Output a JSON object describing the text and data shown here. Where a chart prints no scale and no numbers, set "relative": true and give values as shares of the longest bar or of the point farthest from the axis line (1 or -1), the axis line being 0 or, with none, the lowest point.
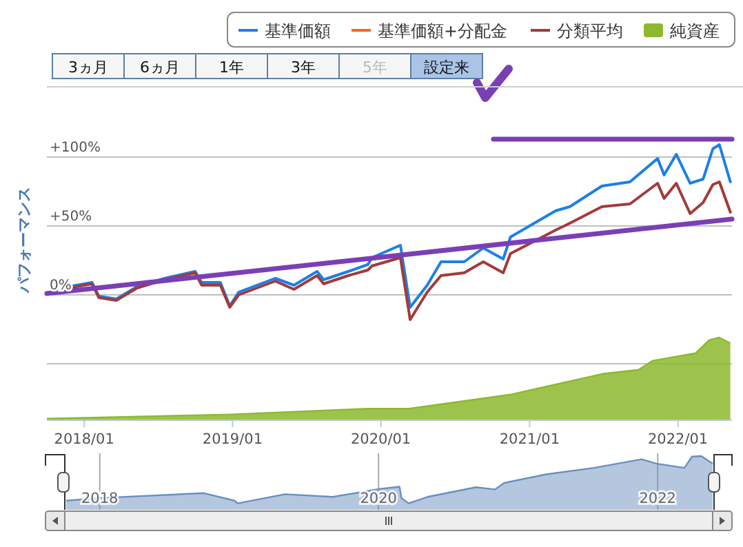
{
  "chart_data": [
    {
      "type": "line",
      "ylabel": "パフォーマンス",
      "xlim": [
        "2017-10-01",
        "2022-05-14"
      ],
      "ylim": [
        -91,
        151
      ],
      "xticks": [
        {
          "value": "2018-01-01",
          "label": "2018/01"
        },
        {
          "value": "2019-01-01",
          "label": "2019/01"
        },
        {
          "value": "2020-01-01",
          "label": "2020/01"
        },
        {
          "value": "2021-01-01",
          "label": "2021/01"
        },
        {
          "value": "2022-01-01",
          "label": "2022/01"
        }
      ],
      "yticks": [
        {
          "value": -50,
          "label": null
        },
        {
          "value": 0,
          "label": "0%"
        },
        {
          "value": 50,
          "label": "+50%"
        },
        {
          "value": 100,
          "label": "+100%"
        }
      ],
      "grid": "y",
      "legend": "top right",
      "marker": "none",
      "annotations": [
        "3ヵ月",
        "6ヵ月",
        "1年",
        "3年",
        "5年",
        "設定来"
      ],
      "x": [
        "2017-11-24",
        "2018-01-20",
        "2018-02-06",
        "2018-03-21",
        "2018-05-11",
        "2018-07-18",
        "2018-10-01",
        "2018-10-17",
        "2018-12-02",
        "2018-12-25",
        "2019-01-16",
        "2019-04-16",
        "2019-06-01",
        "2019-07-28",
        "2019-08-13",
        "2019-10-13",
        "2019-11-30",
        "2019-12-10",
        "2020-02-18",
        "2020-03-13",
        "2020-04-24",
        "2020-05-28",
        "2020-07-24",
        "2020-09-09",
        "2020-10-28",
        "2020-11-15",
        "2021-03-06",
        "2021-04-10",
        "2021-06-28",
        "2021-09-05",
        "2021-11-12",
        "2021-11-28",
        "2021-12-28",
        "2022-01-31",
        "2022-03-04",
        "2022-03-28",
        "2022-04-13",
        "2022-05-10"
      ],
      "series": [
        {
          "name": "基準価額",
          "color": "#1e7fe6",
          "values": [
            6,
            9,
            -1,
            -3,
            6,
            12,
            17,
            9,
            9,
            -8,
            2,
            12,
            7,
            17,
            11,
            17,
            22,
            27,
            36,
            -9,
            7,
            24,
            24,
            34,
            26,
            42,
            61,
            64,
            79,
            82,
            99,
            87,
            102,
            81,
            84,
            106,
            109,
            82
          ]
        },
        {
          "name": "基準価額+分配金",
          "color": "#f26b1d",
          "values": [
            null,
            null,
            null,
            null,
            null,
            null,
            null,
            null,
            null,
            null,
            null,
            null,
            null,
            null,
            null,
            null,
            null,
            null,
            null,
            null,
            null,
            null,
            null,
            null,
            null,
            null,
            null,
            null,
            null,
            null,
            null,
            null,
            null,
            null,
            null,
            null,
            null,
            null
          ]
        },
        {
          "name": "分類平均",
          "color": "#a33a3a",
          "values": [
            5,
            8,
            -2,
            -4,
            5,
            11,
            16,
            7,
            7,
            -9,
            0,
            10,
            4,
            14,
            8,
            14,
            18,
            21,
            27,
            -18,
            2,
            14,
            16,
            24,
            16,
            30,
            47,
            52,
            64,
            66,
            81,
            70,
            81,
            59,
            67,
            80,
            82,
            60
          ]
        },
        {
          "type": "line",
          "color": "#7b3fb5",
          "x": [
            "2017-10-01",
            "2022-05-14"
          ],
          "values": [
            1,
            55
          ]
        },
        {
          "type": "line",
          "color": "#7b3fb5",
          "x": [
            "2020-10-04",
            "2022-05-14"
          ],
          "values": [
            113,
            113
          ]
        }
      ]
    },
    {
      "type": "area",
      "relative": true,
      "tick_labels": false,
      "legend": "top right",
      "xlim": [
        "2017-10-01",
        "2022-05-14"
      ],
      "x": [
        "2017-10-01",
        "2018-12-25",
        "2019-11-30",
        "2020-03-10",
        "2020-11-15",
        "2021-06-28",
        "2021-09-26",
        "2021-10-31",
        "2022-02-13",
        "2022-03-19",
        "2022-04-13",
        "2022-05-10"
      ],
      "series": [
        {
          "name": "純資産",
          "color": "#8db92e",
          "values": [
            0.02,
            0.07,
            0.14,
            0.14,
            0.31,
            0.56,
            0.61,
            0.72,
            0.81,
            0.97,
            1,
            0.93
          ]
        }
      ]
    },
    {
      "type": "area",
      "relative": true,
      "grid": "x",
      "color": "#6a8fbf",
      "xlim": [
        "2017-10-05",
        "2022-05-25"
      ],
      "xticks": [
        {
          "value": "2018-01-01",
          "label": "2018"
        },
        {
          "value": "2020-01-01",
          "label": "2020"
        },
        {
          "value": "2022-01-01",
          "label": "2022"
        }
      ],
      "x": [
        "2017-10-05",
        "2018-01-01",
        "2018-10-01",
        "2018-12-20",
        "2018-12-28",
        "2019-05-01",
        "2019-09-03",
        "2020-01-05",
        "2020-02-25",
        "2020-03-01",
        "2020-03-20",
        "2020-05-08",
        "2020-09-12",
        "2020-11-01",
        "2020-11-25",
        "2021-03-15",
        "2021-07-18",
        "2021-11-20",
        "2021-12-28",
        "2022-03-12",
        "2022-04-01",
        "2022-04-25",
        "2022-05-25"
      ],
      "values": [
        0.17,
        0.22,
        0.31,
        0.17,
        0.12,
        0.29,
        0.24,
        0.39,
        0.43,
        0.22,
        0.12,
        0.24,
        0.42,
        0.38,
        0.5,
        0.66,
        0.78,
        0.94,
        0.86,
        0.78,
        0.99,
        1,
        0.86
      ]
    }
  ]
}
